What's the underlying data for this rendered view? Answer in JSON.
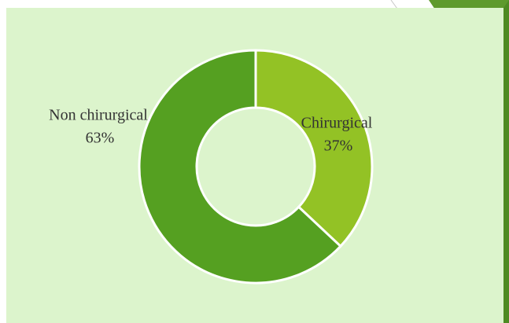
{
  "chart_data": {
    "type": "donut",
    "categories": [
      "Chirurgical",
      "Non chirurgical"
    ],
    "values": [
      37,
      63
    ],
    "value_labels": [
      "37%",
      "63%"
    ],
    "colors": [
      "#93c225",
      "#55a021"
    ]
  }
}
